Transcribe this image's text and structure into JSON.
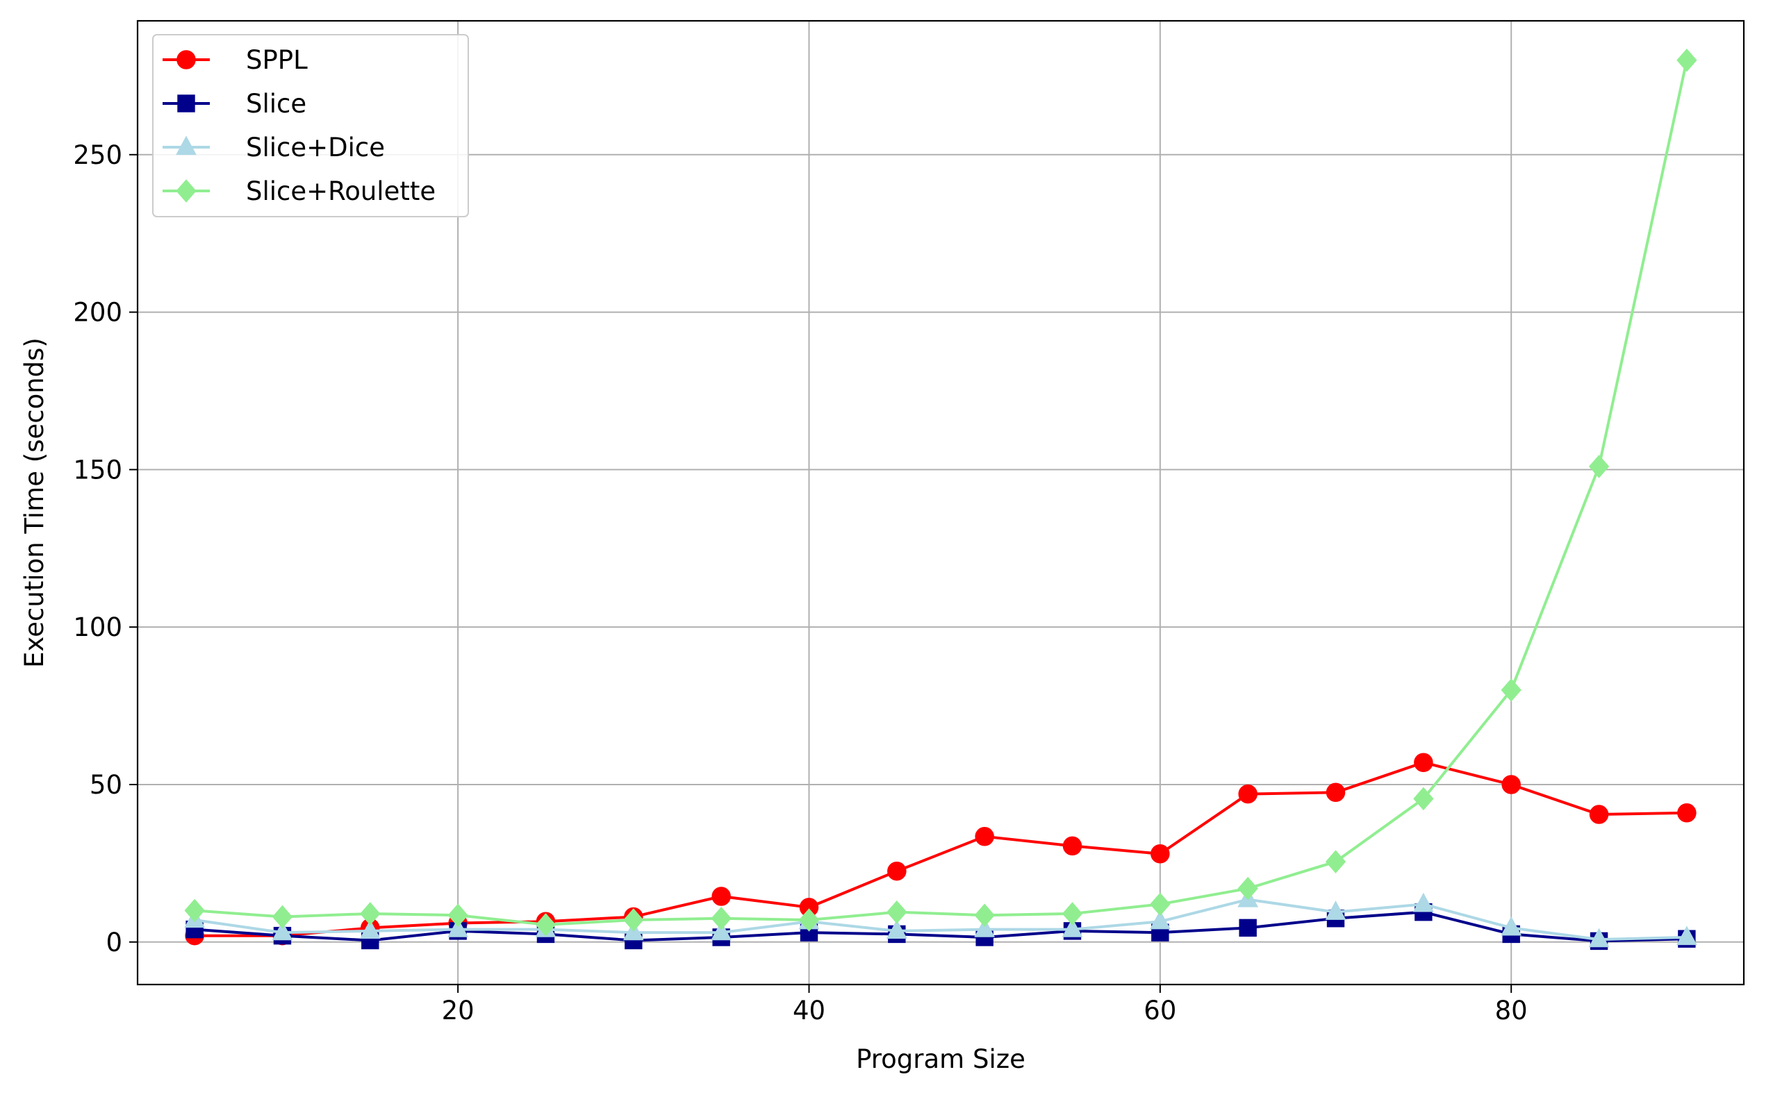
{
  "chart_data": {
    "type": "line",
    "title": "",
    "xlabel": "Program Size",
    "ylabel": "Execution Time (seconds)",
    "xlim": [
      1.75,
      93.25
    ],
    "ylim": [
      -13.5,
      292.5
    ],
    "x_ticks": [
      20,
      40,
      60,
      80
    ],
    "y_ticks": [
      0,
      50,
      100,
      150,
      200,
      250
    ],
    "grid": true,
    "legend_position": "top-left",
    "x": [
      5,
      10,
      15,
      20,
      25,
      30,
      35,
      40,
      45,
      50,
      55,
      60,
      65,
      70,
      75,
      80,
      85,
      90
    ],
    "series": [
      {
        "name": "SPPL",
        "color": "#ff0000",
        "marker": "circle",
        "values": [
          2,
          2,
          4.5,
          6,
          6.5,
          8,
          14.5,
          11,
          22.5,
          33.5,
          30.5,
          28,
          47,
          47.5,
          57,
          50,
          40.5,
          41
        ]
      },
      {
        "name": "Slice",
        "color": "#00008b",
        "marker": "square",
        "values": [
          4,
          2,
          0.5,
          3.5,
          2.5,
          0.5,
          1.5,
          3,
          2.5,
          1.5,
          3.5,
          3,
          4.5,
          7.5,
          9.5,
          2.5,
          0.3,
          1
        ]
      },
      {
        "name": "Slice+Dice",
        "color": "#add8e6",
        "marker": "triangle",
        "values": [
          7,
          3,
          3.5,
          4,
          4,
          3,
          3,
          6.5,
          3.5,
          4,
          4,
          6.5,
          13.5,
          9.5,
          12,
          4.5,
          0.8,
          1.5
        ]
      },
      {
        "name": "Slice+Roulette",
        "color": "#90ee90",
        "marker": "diamond",
        "values": [
          10,
          8,
          9,
          8.5,
          5.5,
          7,
          7.5,
          7,
          9.5,
          8.5,
          9,
          12,
          17,
          25.5,
          45.5,
          80,
          151,
          280
        ]
      }
    ]
  }
}
